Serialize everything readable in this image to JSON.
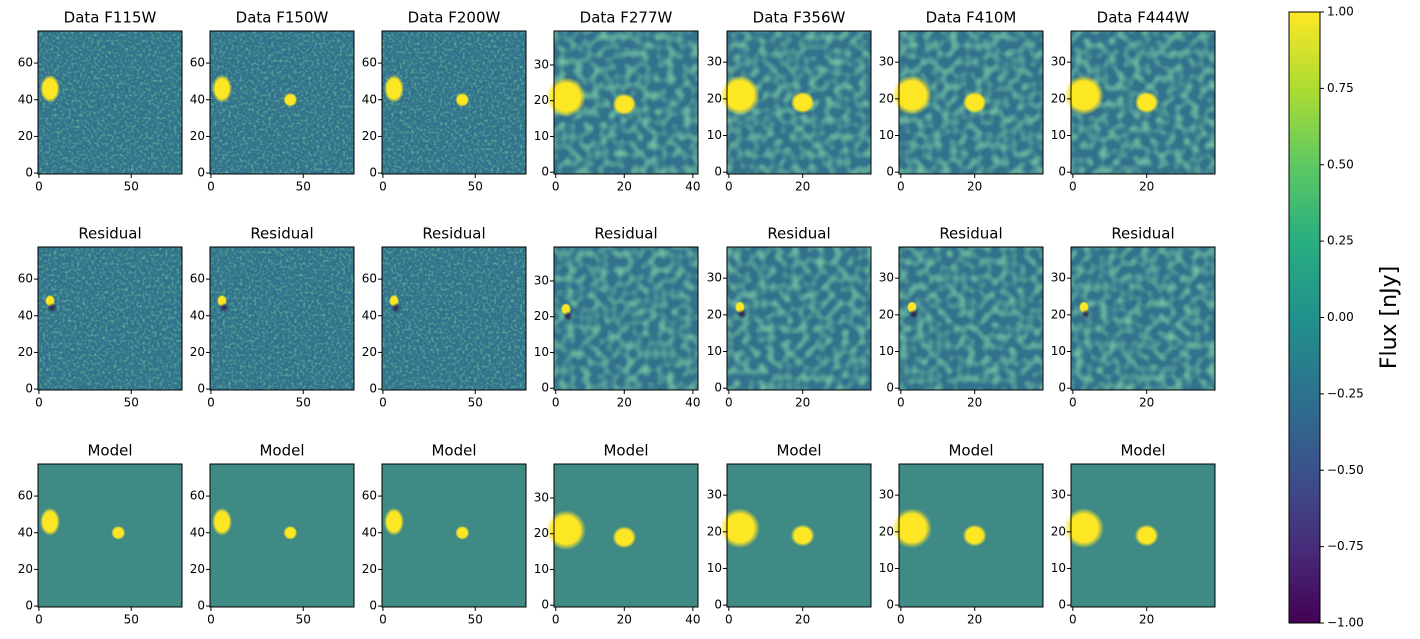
{
  "chart_data": [
    {
      "type": "image",
      "title": "Data F115W",
      "xlim": [
        -0.5,
        77.5
      ],
      "ylim": [
        -0.5,
        77.5
      ],
      "xticks": [
        0,
        50
      ],
      "yticks": [
        0,
        20,
        40,
        60
      ]
    },
    {
      "type": "image",
      "title": "Data F150W",
      "xlim": [
        -0.5,
        77.5
      ],
      "ylim": [
        -0.5,
        77.5
      ],
      "xticks": [
        0,
        50
      ],
      "yticks": [
        0,
        20,
        40,
        60
      ]
    },
    {
      "type": "image",
      "title": "Data F200W",
      "xlim": [
        -0.5,
        77.5
      ],
      "ylim": [
        -0.5,
        77.5
      ],
      "xticks": [
        0,
        50
      ],
      "yticks": [
        0,
        20,
        40,
        60
      ]
    },
    {
      "type": "image",
      "title": "Data F277W",
      "xlim": [
        -0.5,
        41.5
      ],
      "ylim": [
        -0.5,
        39.5
      ],
      "xticks": [
        0,
        20,
        40
      ],
      "yticks": [
        0,
        10,
        20,
        30
      ]
    },
    {
      "type": "image",
      "title": "Data F356W",
      "xlim": [
        -0.5,
        38.5
      ],
      "ylim": [
        -0.5,
        38.5
      ],
      "xticks": [
        0,
        20
      ],
      "yticks": [
        0,
        10,
        20,
        30
      ]
    },
    {
      "type": "image",
      "title": "Data F410M",
      "xlim": [
        -0.5,
        38.5
      ],
      "ylim": [
        -0.5,
        38.5
      ],
      "xticks": [
        0,
        20
      ],
      "yticks": [
        0,
        10,
        20,
        30
      ]
    },
    {
      "type": "image",
      "title": "Data F444W",
      "xlim": [
        -0.5,
        38.5
      ],
      "ylim": [
        -0.5,
        38.5
      ],
      "xticks": [
        0,
        20
      ],
      "yticks": [
        0,
        10,
        20,
        30
      ]
    },
    {
      "type": "image",
      "title": "Residual",
      "xlim": [
        -0.5,
        77.5
      ],
      "ylim": [
        -0.5,
        77.5
      ],
      "xticks": [
        0,
        50
      ],
      "yticks": [
        0,
        20,
        40,
        60
      ]
    },
    {
      "type": "image",
      "title": "Residual",
      "xlim": [
        -0.5,
        77.5
      ],
      "ylim": [
        -0.5,
        77.5
      ],
      "xticks": [
        0,
        50
      ],
      "yticks": [
        0,
        20,
        40,
        60
      ]
    },
    {
      "type": "image",
      "title": "Residual",
      "xlim": [
        -0.5,
        77.5
      ],
      "ylim": [
        -0.5,
        77.5
      ],
      "xticks": [
        0,
        50
      ],
      "yticks": [
        0,
        20,
        40,
        60
      ]
    },
    {
      "type": "image",
      "title": "Residual",
      "xlim": [
        -0.5,
        41.5
      ],
      "ylim": [
        -0.5,
        39.5
      ],
      "xticks": [
        0,
        20,
        40
      ],
      "yticks": [
        0,
        10,
        20,
        30
      ]
    },
    {
      "type": "image",
      "title": "Residual",
      "xlim": [
        -0.5,
        38.5
      ],
      "ylim": [
        -0.5,
        38.5
      ],
      "xticks": [
        0,
        20
      ],
      "yticks": [
        0,
        10,
        20,
        30
      ]
    },
    {
      "type": "image",
      "title": "Residual",
      "xlim": [
        -0.5,
        38.5
      ],
      "ylim": [
        -0.5,
        38.5
      ],
      "xticks": [
        0,
        20
      ],
      "yticks": [
        0,
        10,
        20,
        30
      ]
    },
    {
      "type": "image",
      "title": "Residual",
      "xlim": [
        -0.5,
        38.5
      ],
      "ylim": [
        -0.5,
        38.5
      ],
      "xticks": [
        0,
        20
      ],
      "yticks": [
        0,
        10,
        20,
        30
      ]
    },
    {
      "type": "image",
      "title": "Model",
      "xlim": [
        -0.5,
        77.5
      ],
      "ylim": [
        -0.5,
        77.5
      ],
      "xticks": [
        0,
        50
      ],
      "yticks": [
        0,
        20,
        40,
        60
      ]
    },
    {
      "type": "image",
      "title": "Model",
      "xlim": [
        -0.5,
        77.5
      ],
      "ylim": [
        -0.5,
        77.5
      ],
      "xticks": [
        0,
        50
      ],
      "yticks": [
        0,
        20,
        40,
        60
      ]
    },
    {
      "type": "image",
      "title": "Model",
      "xlim": [
        -0.5,
        77.5
      ],
      "ylim": [
        -0.5,
        77.5
      ],
      "xticks": [
        0,
        50
      ],
      "yticks": [
        0,
        20,
        40,
        60
      ]
    },
    {
      "type": "image",
      "title": "Model",
      "xlim": [
        -0.5,
        41.5
      ],
      "ylim": [
        -0.5,
        39.5
      ],
      "xticks": [
        0,
        20,
        40
      ],
      "yticks": [
        0,
        10,
        20,
        30
      ]
    },
    {
      "type": "image",
      "title": "Model",
      "xlim": [
        -0.5,
        38.5
      ],
      "ylim": [
        -0.5,
        38.5
      ],
      "xticks": [
        0,
        20
      ],
      "yticks": [
        0,
        10,
        20,
        30
      ]
    },
    {
      "type": "image",
      "title": "Model",
      "xlim": [
        -0.5,
        38.5
      ],
      "ylim": [
        -0.5,
        38.5
      ],
      "xticks": [
        0,
        20
      ],
      "yticks": [
        0,
        10,
        20,
        30
      ]
    },
    {
      "type": "image",
      "title": "Model",
      "xlim": [
        -0.5,
        38.5
      ],
      "ylim": [
        -0.5,
        38.5
      ],
      "xticks": [
        0,
        20
      ],
      "yticks": [
        0,
        10,
        20,
        30
      ]
    },
    {
      "type": "colorbar",
      "label": "Flux [nJy]",
      "colormap": "viridis",
      "colors": [
        "#440154",
        "#472d7b",
        "#3b528b",
        "#2c728e",
        "#21918c",
        "#28ae80",
        "#5ec962",
        "#addc30",
        "#fde725"
      ],
      "ylim": [
        -1,
        1
      ],
      "yticks": [
        {
          "value": -1,
          "label": "−1.00"
        },
        {
          "value": -0.75,
          "label": "−0.75"
        },
        {
          "value": -0.5,
          "label": "−0.50"
        },
        {
          "value": -0.25,
          "label": "−0.25"
        },
        {
          "value": 0,
          "label": "0.00"
        },
        {
          "value": 0.25,
          "label": "0.25"
        },
        {
          "value": 0.5,
          "label": "0.50"
        },
        {
          "value": 0.75,
          "label": "0.75"
        },
        {
          "value": 1,
          "label": "1.00"
        }
      ]
    }
  ]
}
